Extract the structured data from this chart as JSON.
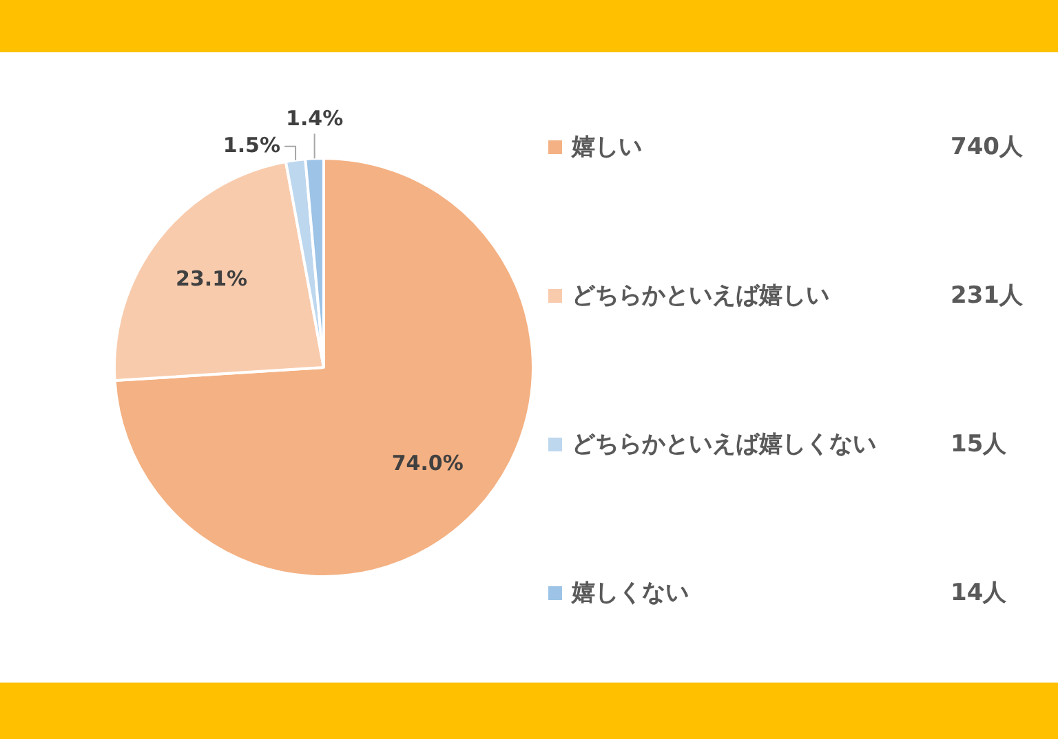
{
  "chart_data": {
    "type": "pie",
    "categories": [
      "嬉しい",
      "どちらかといえば嬉しい",
      "どちらかといえば嬉しくない",
      "嬉しくない"
    ],
    "values": [
      74.0,
      23.1,
      1.5,
      1.4
    ],
    "colors": [
      "#f4b183",
      "#f8cbad",
      "#bdd7ee",
      "#9dc3e6"
    ],
    "value_labels": [
      "74.0%",
      "23.1%",
      "1.5%",
      "1.4%"
    ],
    "annotations": [
      "740人",
      "231人",
      "15人",
      "14人"
    ],
    "legend": "right"
  }
}
